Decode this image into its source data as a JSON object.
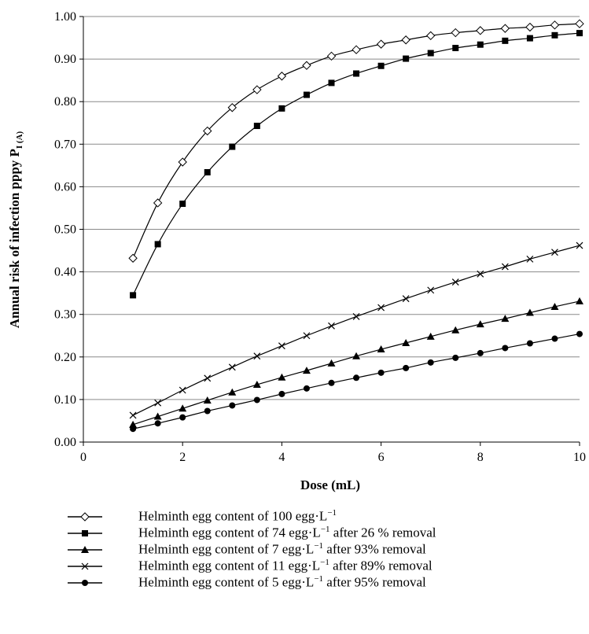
{
  "chart_data": {
    "type": "line",
    "xlabel": "Dose (mL)",
    "ylabel_main": "Annual risk of infection pppy P",
    "ylabel_sub": "I (A)",
    "xlim": [
      0,
      10
    ],
    "ylim": [
      0,
      1
    ],
    "x_ticks": [
      "0",
      "2",
      "4",
      "6",
      "8",
      "10"
    ],
    "y_ticks": [
      "0.00",
      "0.10",
      "0.20",
      "0.30",
      "0.40",
      "0.50",
      "0.60",
      "0.70",
      "0.80",
      "0.90",
      "1.00"
    ],
    "grid": "horizontal",
    "legend_position": "below",
    "x": [
      1,
      1.5,
      2,
      2.5,
      3,
      3.5,
      4,
      4.5,
      5,
      5.5,
      6,
      6.5,
      7,
      7.5,
      8,
      8.5,
      9,
      9.5,
      10
    ],
    "series": [
      {
        "name": "Helminth egg content of 100 egg·L−1",
        "legend_parts": [
          "Helminth egg content of 100 egg·L",
          "−1",
          ""
        ],
        "marker": "diamond-open",
        "values": [
          0.432,
          0.562,
          0.658,
          0.731,
          0.786,
          0.828,
          0.86,
          0.885,
          0.907,
          0.922,
          0.935,
          0.945,
          0.955,
          0.962,
          0.967,
          0.972,
          0.975,
          0.98,
          0.983
        ]
      },
      {
        "name": "Helminth egg content of 74 egg·L−1 after 26 % removal",
        "legend_parts": [
          "Helminth egg content of 74 egg·L",
          "−1",
          " after 26 % removal"
        ],
        "marker": "square",
        "values": [
          0.345,
          0.465,
          0.56,
          0.634,
          0.694,
          0.743,
          0.784,
          0.816,
          0.844,
          0.866,
          0.884,
          0.901,
          0.914,
          0.926,
          0.934,
          0.943,
          0.949,
          0.956,
          0.961
        ]
      },
      {
        "name": "Helminth egg content of 7 egg·L−1 after 93% removal",
        "legend_parts": [
          "Helminth egg content of 7 egg·L",
          "−1",
          " after 93% removal"
        ],
        "marker": "triangle",
        "values": [
          0.041,
          0.06,
          0.079,
          0.098,
          0.117,
          0.135,
          0.152,
          0.168,
          0.185,
          0.202,
          0.218,
          0.233,
          0.248,
          0.263,
          0.277,
          0.29,
          0.304,
          0.318,
          0.331
        ]
      },
      {
        "name": "Helminth egg content of 11 egg·L−1 after 89% removal",
        "legend_parts": [
          "Helminth egg content of 11 egg·L",
          "−1",
          " after 89% removal"
        ],
        "marker": "x",
        "values": [
          0.063,
          0.092,
          0.122,
          0.15,
          0.176,
          0.202,
          0.226,
          0.25,
          0.273,
          0.295,
          0.316,
          0.337,
          0.357,
          0.376,
          0.395,
          0.412,
          0.43,
          0.446,
          0.462
        ]
      },
      {
        "name": "Helminth egg content of 5 egg·L−1 after 95% removal",
        "legend_parts": [
          "Helminth egg content of 5 egg·L",
          "−1",
          " after 95% removal"
        ],
        "marker": "circle",
        "values": [
          0.031,
          0.044,
          0.058,
          0.073,
          0.086,
          0.099,
          0.113,
          0.126,
          0.139,
          0.151,
          0.163,
          0.174,
          0.187,
          0.198,
          0.209,
          0.221,
          0.232,
          0.243,
          0.254
        ]
      }
    ]
  }
}
